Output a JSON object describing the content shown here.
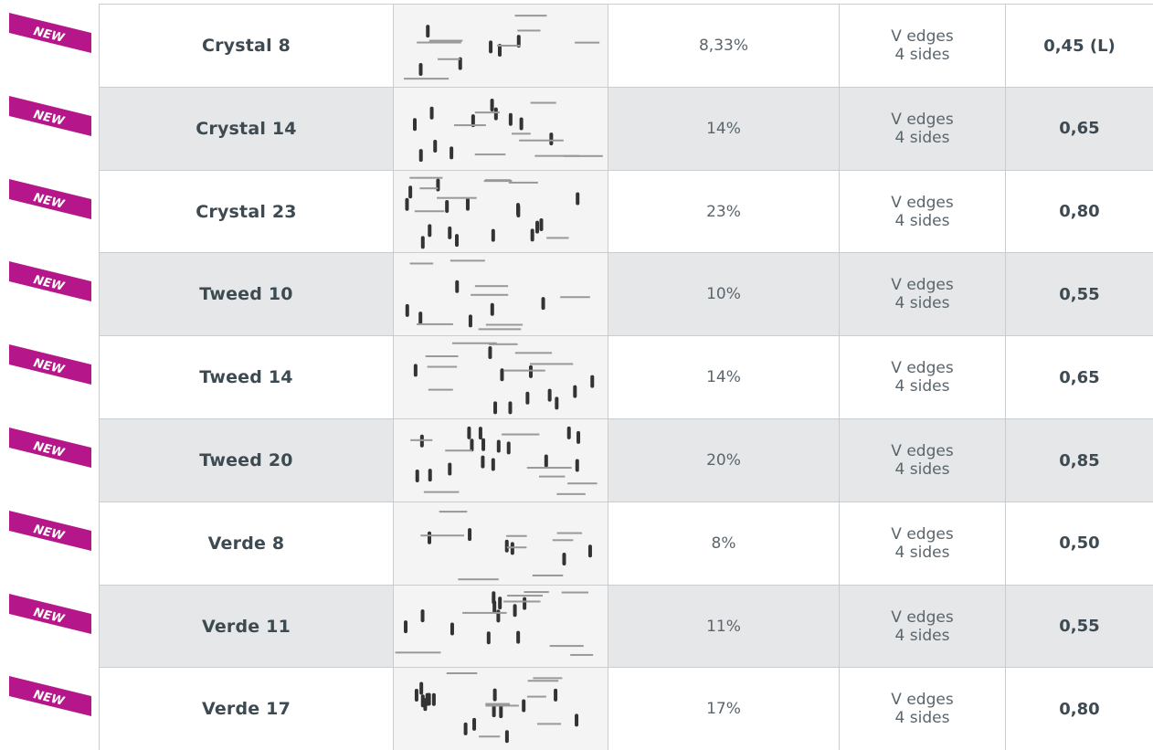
{
  "table": {
    "rows": [
      {
        "badge": "NEW",
        "name": "Crystal 8",
        "rate": "8,33%",
        "edges": [
          "V edges",
          "4 sides"
        ],
        "value": "0,45 (L)"
      },
      {
        "badge": "NEW",
        "name": "Crystal 14",
        "rate": "14%",
        "edges": [
          "V edges",
          "4 sides"
        ],
        "value": "0,65"
      },
      {
        "badge": "NEW",
        "name": "Crystal 23",
        "rate": "23%",
        "edges": [
          "V edges",
          "4 sides"
        ],
        "value": "0,80"
      },
      {
        "badge": "NEW",
        "name": "Tweed 10",
        "rate": "10%",
        "edges": [
          "V edges",
          "4 sides"
        ],
        "value": "0,55"
      },
      {
        "badge": "NEW",
        "name": "Tweed 14",
        "rate": "14%",
        "edges": [
          "V edges",
          "4 sides"
        ],
        "value": "0,65"
      },
      {
        "badge": "NEW",
        "name": "Tweed 20",
        "rate": "20%",
        "edges": [
          "V edges",
          "4 sides"
        ],
        "value": "0,85"
      },
      {
        "badge": "NEW",
        "name": "Verde 8",
        "rate": "8%",
        "edges": [
          "V edges",
          "4 sides"
        ],
        "value": "0,50"
      },
      {
        "badge": "NEW",
        "name": "Verde 11",
        "rate": "11%",
        "edges": [
          "V edges",
          "4 sides"
        ],
        "value": "0,55"
      },
      {
        "badge": "NEW",
        "name": "Verde 17",
        "rate": "17%",
        "edges": [
          "V edges",
          "4 sides"
        ],
        "value": "0,80"
      }
    ]
  }
}
